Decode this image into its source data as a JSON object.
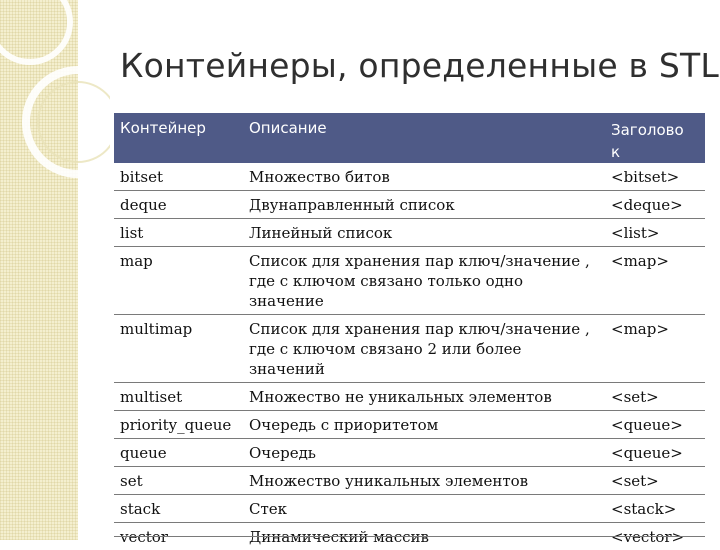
{
  "title": "Контейнеры, определенные в STL",
  "table": {
    "headers": [
      "Контейнер",
      "Описание",
      "Заголово к"
    ],
    "rows": [
      {
        "name": "bitset",
        "desc": "Множество битов",
        "header": "<bitset>"
      },
      {
        "name": "deque",
        "desc": "Двунаправленный список",
        "header": "<deque>"
      },
      {
        "name": "list",
        "desc": "Линейный список",
        "header": "<list>"
      },
      {
        "name": "map",
        "desc": "Список для хранения пар ключ/значение , где  с ключом связано только одно значение",
        "header": "<map>"
      },
      {
        "name": "multimap",
        "desc": "Список для хранения пар ключ/значение , где с ключом связано  2 или более значений",
        "header": "<map>"
      },
      {
        "name": "multiset",
        "desc": "Множество не уникальных  элементов",
        "header": "<set>"
      },
      {
        "name": "priority_queue",
        "desc": "Очередь с приоритетом",
        "header": "<queue>"
      },
      {
        "name": "queue",
        "desc": "Очередь",
        "header": "<queue>"
      },
      {
        "name": "set",
        "desc": "Множество уникальных элементов",
        "header": "<set>"
      },
      {
        "name": "stack",
        "desc": "Стек",
        "header": "<stack>"
      },
      {
        "name": "vector",
        "desc": "Динамический массив",
        "header": "<vector>"
      }
    ]
  },
  "colors": {
    "header_bg": "#4f5a87",
    "band": "#f4efcf"
  }
}
